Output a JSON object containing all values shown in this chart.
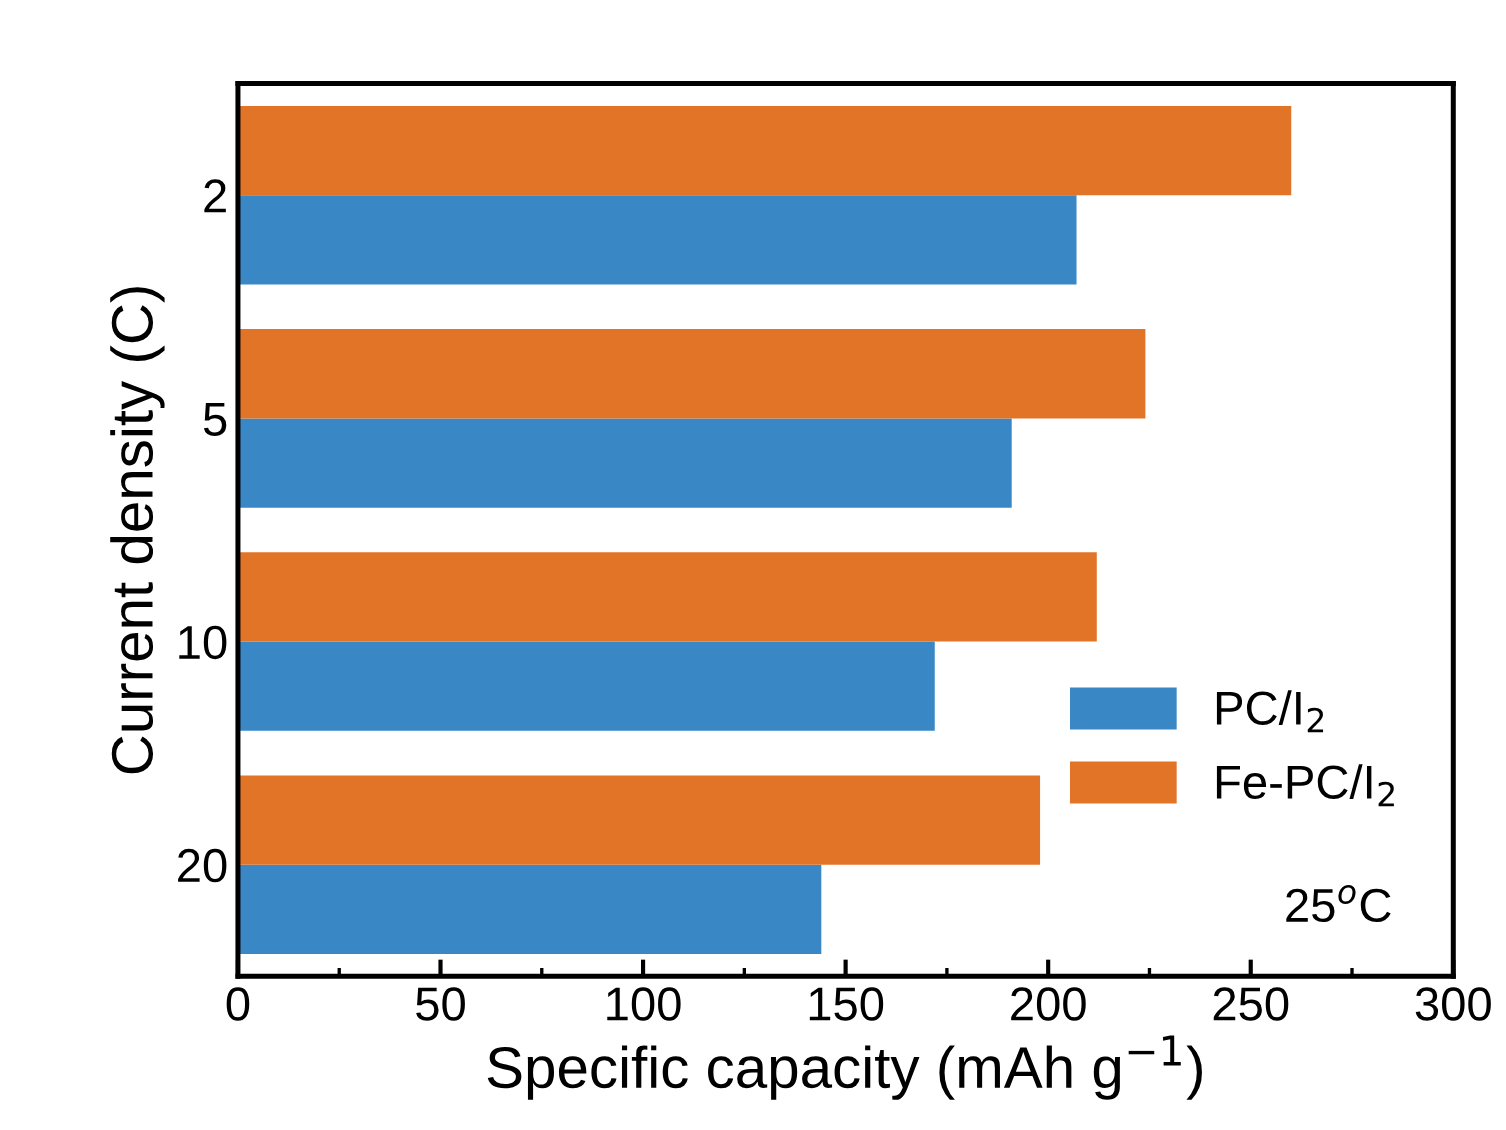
{
  "chart_data": {
    "type": "bar",
    "orientation": "horizontal",
    "xlabel": "Specific capacity (mAh g$^{−1}$)",
    "ylabel": "Current density (C)",
    "categories": [
      "2",
      "5",
      "10",
      "20"
    ],
    "series": [
      {
        "name": "PC/I$_{2}$",
        "color": "#3a87c5",
        "values": [
          207,
          191,
          172,
          144
        ]
      },
      {
        "name": "Fe-PC/I$_{2}$",
        "color": "#e27427",
        "values": [
          260,
          224,
          212,
          198
        ]
      }
    ],
    "xlim": [
      0,
      300
    ],
    "xticks": [
      0,
      50,
      100,
      150,
      200,
      250,
      300
    ],
    "legend": "right",
    "grid": false,
    "annotations": [
      "25$^{o}$C"
    ]
  }
}
